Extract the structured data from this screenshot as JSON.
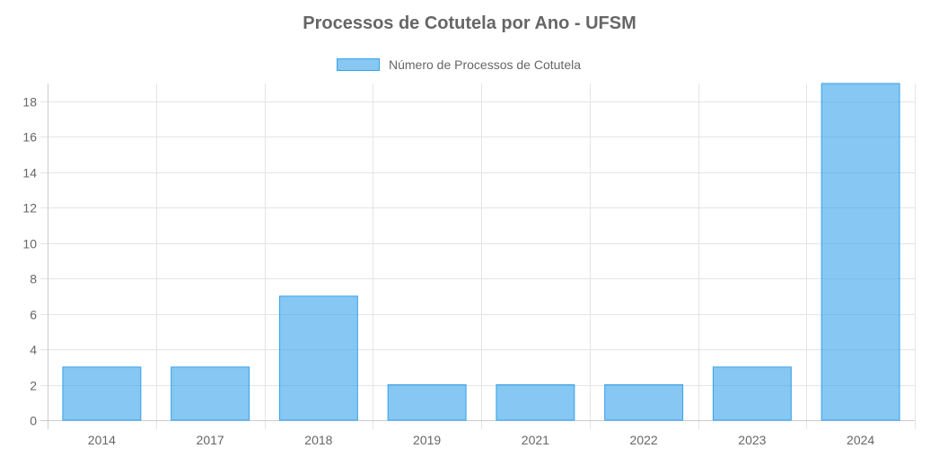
{
  "chart_data": {
    "type": "bar",
    "title": "Processos de Cotutela por Ano - UFSM",
    "categories": [
      "2014",
      "2017",
      "2018",
      "2019",
      "2021",
      "2022",
      "2023",
      "2024"
    ],
    "series": [
      {
        "name": "Número de Processos de Cotutela",
        "values": [
          3,
          3,
          7,
          2,
          2,
          2,
          3,
          19
        ]
      }
    ],
    "ylim": [
      0,
      19
    ],
    "yticks": [
      "0",
      "2",
      "4",
      "6",
      "8",
      "10",
      "12",
      "14",
      "16",
      "18"
    ],
    "grid": true,
    "legend_position": "top",
    "colors": {
      "bar_fill": "rgba(54,162,235,0.6)",
      "bar_border": "#36A2EB",
      "grid": "#e5e5e5",
      "text": "#666666"
    }
  }
}
